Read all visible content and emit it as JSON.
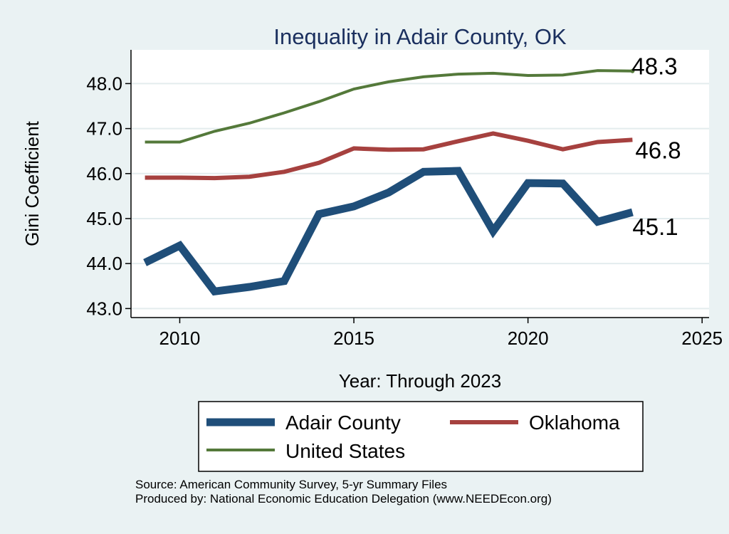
{
  "chart_data": {
    "type": "line",
    "title": "Inequality in Adair County, OK",
    "xlabel": "Year: Through 2023",
    "ylabel": "Gini Coefficient",
    "xlim": [
      2008.6,
      2025.2
    ],
    "ylim": [
      42.8,
      48.75
    ],
    "x_ticks": [
      2010,
      2015,
      2020,
      2025
    ],
    "y_ticks": [
      43,
      44,
      45,
      46,
      47,
      48
    ],
    "y_tick_labels": [
      "43.0",
      "44.0",
      "45.0",
      "46.0",
      "47.0",
      "48.0"
    ],
    "grid": true,
    "legend_position": "bottom",
    "series": [
      {
        "name": "Adair County",
        "color": "#1f4e79",
        "x": [
          2009,
          2010,
          2011,
          2012,
          2013,
          2014,
          2015,
          2016,
          2017,
          2018,
          2019,
          2020,
          2021,
          2022,
          2023
        ],
        "values": [
          44.02,
          44.4,
          43.38,
          43.48,
          43.61,
          45.1,
          45.27,
          45.58,
          46.04,
          46.06,
          44.72,
          45.79,
          45.78,
          44.93,
          45.14
        ],
        "end_label": "45.1"
      },
      {
        "name": "Oklahoma",
        "color": "#a6413f",
        "x": [
          2009,
          2010,
          2011,
          2012,
          2013,
          2014,
          2015,
          2016,
          2017,
          2018,
          2019,
          2020,
          2021,
          2022,
          2023
        ],
        "values": [
          45.91,
          45.91,
          45.9,
          45.93,
          46.04,
          46.24,
          46.56,
          46.53,
          46.54,
          46.72,
          46.89,
          46.73,
          46.54,
          46.7,
          46.75
        ],
        "end_label": "46.8"
      },
      {
        "name": "United States",
        "color": "#54793a",
        "x": [
          2009,
          2010,
          2011,
          2012,
          2013,
          2014,
          2015,
          2016,
          2017,
          2018,
          2019,
          2020,
          2021,
          2022,
          2023
        ],
        "values": [
          46.7,
          46.7,
          46.94,
          47.12,
          47.35,
          47.6,
          47.88,
          48.04,
          48.15,
          48.21,
          48.23,
          48.18,
          48.19,
          48.29,
          48.28
        ],
        "end_label": "48.3"
      }
    ],
    "legend": {
      "entries": [
        "Adair County",
        "Oklahoma",
        "United States"
      ]
    }
  },
  "notes": {
    "source": "Source: American Community Survey, 5-yr Summary Files",
    "produced_by": "Produced by: National Economic Education Delegation (www.NEEDEcon.org)"
  }
}
